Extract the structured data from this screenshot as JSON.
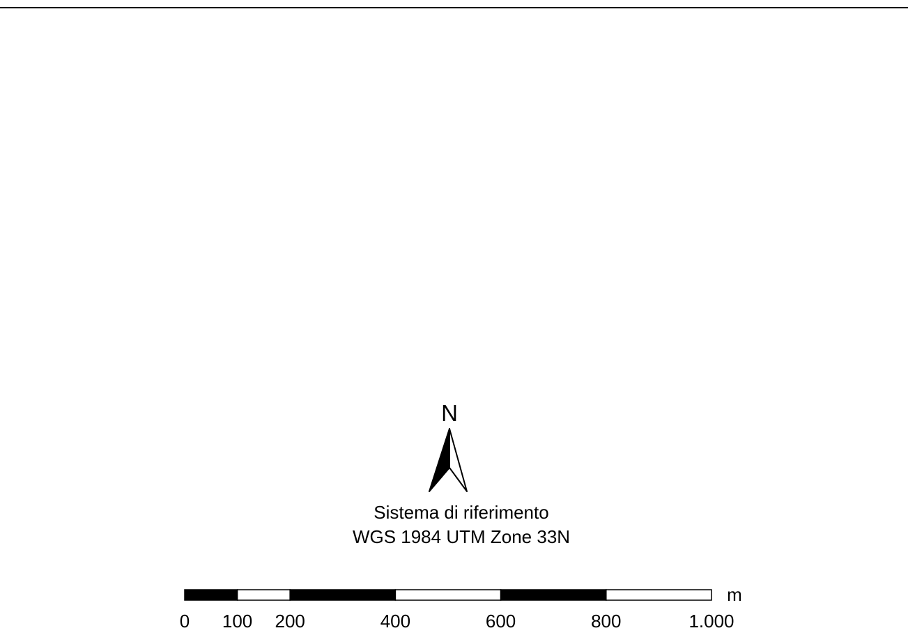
{
  "map": {
    "north_arrow": {
      "label": "N",
      "icon": "north-arrow-icon"
    },
    "crs": {
      "title": "Sistema di riferimento",
      "name": "WGS 1984 UTM Zone 33N"
    },
    "scale_bar": {
      "unit": "m",
      "max_value": 1000,
      "segment_breaks": [
        0,
        100,
        200,
        400,
        600,
        800,
        1000
      ],
      "tick_labels": [
        "0",
        "100",
        "200",
        "400",
        "600",
        "800",
        "1.000"
      ],
      "fill_pattern": [
        "black",
        "white",
        "black",
        "white",
        "black",
        "white"
      ],
      "colors": {
        "dark": "#000000",
        "light": "#ffffff"
      }
    }
  }
}
